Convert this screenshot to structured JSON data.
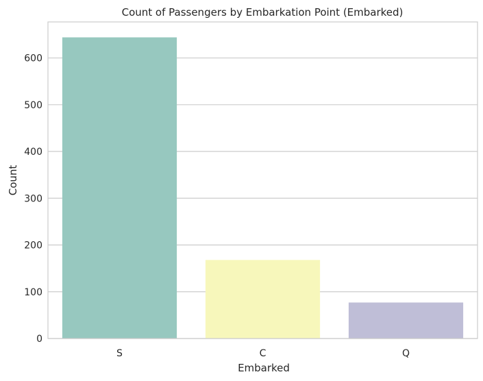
{
  "chart_data": {
    "type": "bar",
    "title": "Count of Passengers by Embarkation Point (Embarked)",
    "xlabel": "Embarked",
    "ylabel": "Count",
    "categories": [
      "S",
      "C",
      "Q"
    ],
    "values": [
      644,
      168,
      77
    ],
    "colors": [
      "#97c8bf",
      "#f7f7bb",
      "#bfbed7"
    ],
    "ylim": [
      0,
      677
    ],
    "yticks": [
      0,
      100,
      200,
      300,
      400,
      500,
      600
    ],
    "grid": true,
    "legend": "none"
  }
}
